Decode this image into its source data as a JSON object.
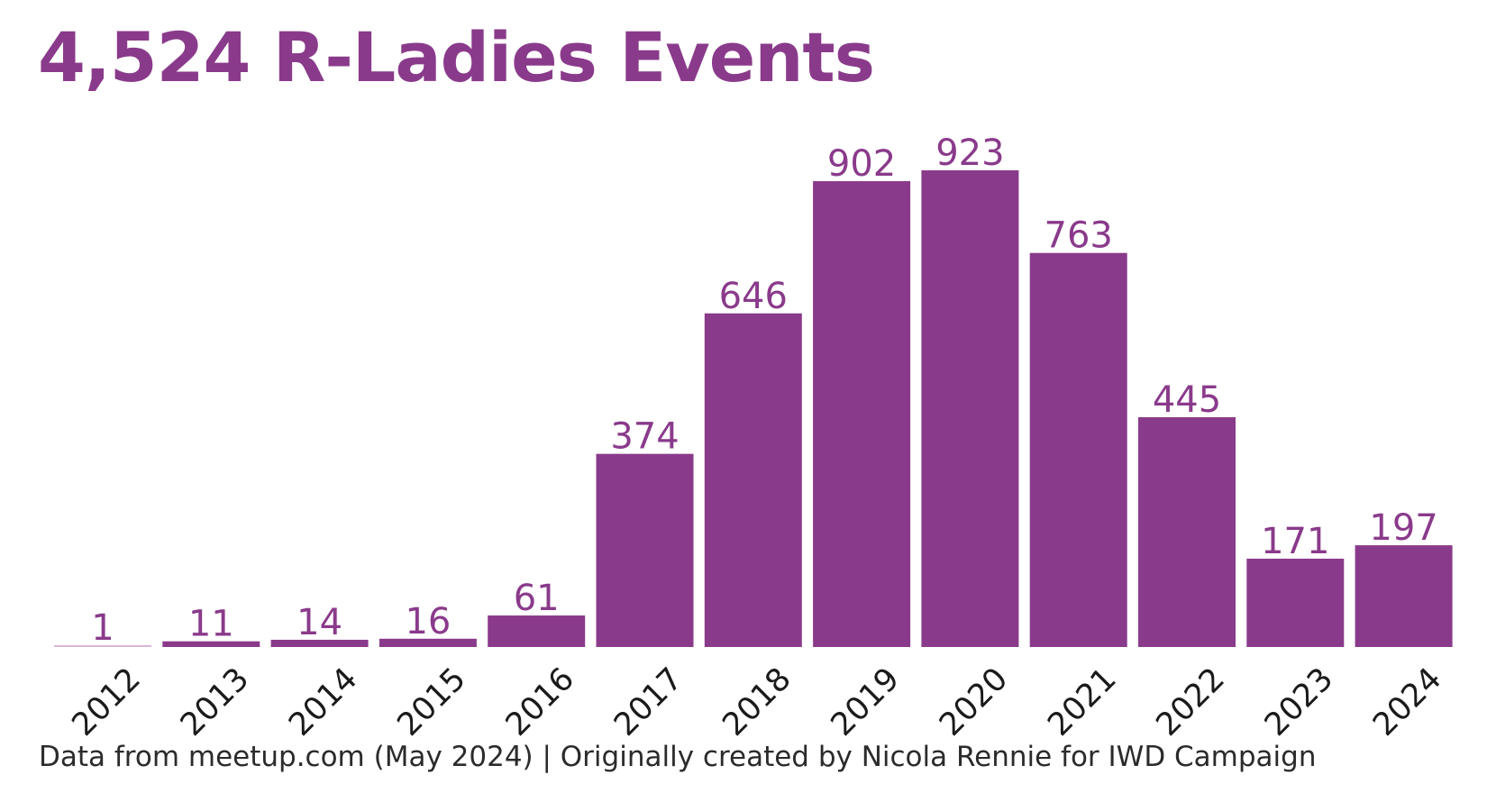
{
  "chart_data": {
    "type": "bar",
    "title": "4,524 R-Ladies Events",
    "categories": [
      "2012",
      "2013",
      "2014",
      "2015",
      "2016",
      "2017",
      "2018",
      "2019",
      "2020",
      "2021",
      "2022",
      "2023",
      "2024"
    ],
    "values": [
      1,
      11,
      14,
      16,
      61,
      374,
      646,
      902,
      923,
      763,
      445,
      171,
      197
    ],
    "xlabel": "",
    "ylabel": "",
    "ylim": [
      0,
      923
    ],
    "grid": false,
    "legend": "none",
    "caption": "Data from meetup.com (May 2024) | Originally created by Nicola Rennie for IWD Campaign"
  },
  "colors": {
    "bar": "#8a3a8b",
    "first_bar": "#d7b6d8",
    "title": "#8a3a8b",
    "data_label": "#8a3a8b",
    "tick_label": "#1a1a1a",
    "caption": "#2b2b2b"
  }
}
